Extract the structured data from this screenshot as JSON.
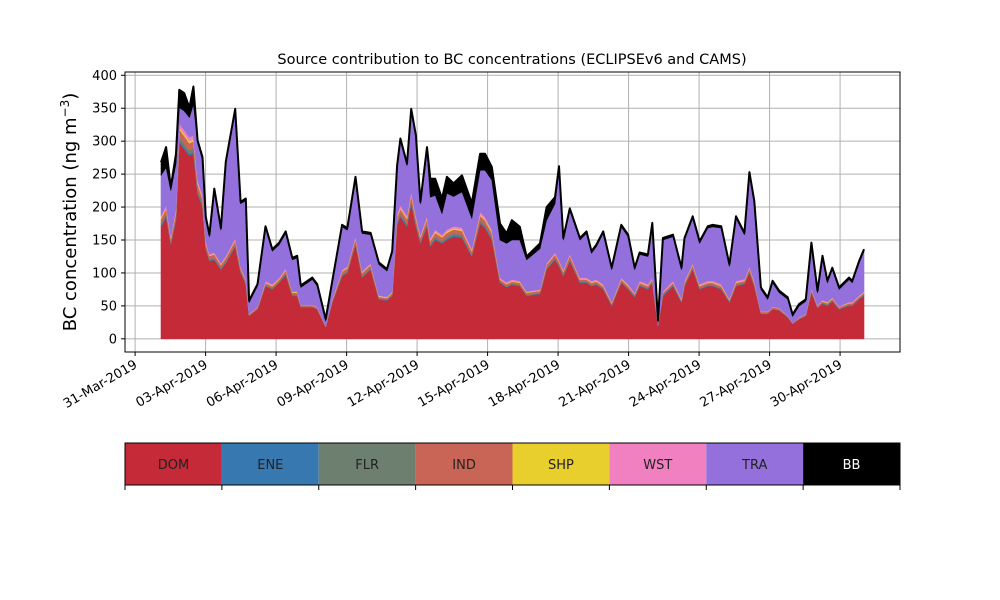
{
  "chart_data": {
    "type": "area",
    "stacked": true,
    "title": "Source contribution to BC concentrations (ECLIPSEv6 and CAMS)",
    "xlabel": "",
    "ylabel": "BC concentration (ng m",
    "ylabel_sup": "−3",
    "ylabel_end": ")",
    "x_units": "days since 2019-03-31 00:00",
    "xlim": [
      -0.43,
      32.55
    ],
    "ylim": [
      -20,
      405
    ],
    "grid": true,
    "yticks": [
      0,
      50,
      100,
      150,
      200,
      250,
      300,
      350,
      400
    ],
    "xticks": [
      {
        "day": 0,
        "label": "31-Mar-2019"
      },
      {
        "day": 3,
        "label": "03-Apr-2019"
      },
      {
        "day": 6,
        "label": "06-Apr-2019"
      },
      {
        "day": 9,
        "label": "09-Apr-2019"
      },
      {
        "day": 12,
        "label": "12-Apr-2019"
      },
      {
        "day": 15,
        "label": "15-Apr-2019"
      },
      {
        "day": 18,
        "label": "18-Apr-2019"
      },
      {
        "day": 21,
        "label": "21-Apr-2019"
      },
      {
        "day": 24,
        "label": "24-Apr-2019"
      },
      {
        "day": 27,
        "label": "27-Apr-2019"
      },
      {
        "day": 30,
        "label": "30-Apr-2019"
      }
    ],
    "legend_placement": "below",
    "x": [
      1.1,
      1.32,
      1.52,
      1.74,
      1.88,
      2.09,
      2.31,
      2.48,
      2.66,
      2.87,
      3.01,
      3.16,
      3.37,
      3.65,
      3.86,
      4.26,
      4.49,
      4.71,
      4.85,
      5.21,
      5.55,
      5.84,
      6.13,
      6.41,
      6.69,
      6.9,
      7.05,
      7.54,
      7.75,
      8.11,
      8.39,
      8.81,
      9.03,
      9.38,
      9.66,
      10.02,
      10.37,
      10.72,
      10.94,
      11.15,
      11.29,
      11.57,
      11.75,
      11.95,
      12.14,
      12.42,
      12.56,
      12.77,
      13.06,
      13.27,
      13.55,
      13.91,
      14.33,
      14.68,
      14.89,
      15.18,
      15.53,
      15.81,
      16.03,
      16.37,
      16.66,
      17.23,
      17.51,
      17.87,
      18.04,
      18.22,
      18.5,
      18.93,
      19.21,
      19.42,
      19.63,
      19.92,
      20.28,
      20.69,
      20.98,
      21.26,
      21.47,
      21.82,
      22.01,
      22.25,
      22.46,
      22.89,
      23.25,
      23.38,
      23.73,
      24.02,
      24.37,
      24.58,
      24.94,
      25.29,
      25.57,
      25.93,
      26.14,
      26.35,
      26.63,
      26.92,
      27.13,
      27.41,
      27.77,
      27.98,
      28.26,
      28.54,
      28.78,
      29.04,
      29.25,
      29.46,
      29.67,
      29.96,
      30.38,
      30.52,
      30.81,
      31.02
    ],
    "series": [
      {
        "name": "DOM",
        "color": "#c42a37",
        "text_color": "#222222",
        "values": [
          170,
          185,
          143,
          180,
          298,
          288,
          278,
          281,
          220,
          200,
          136,
          118,
          120,
          105,
          115,
          140,
          100,
          83,
          35,
          45,
          80,
          75,
          85,
          97,
          65,
          65,
          48,
          48,
          45,
          18,
          55,
          95,
          100,
          143,
          93,
          105,
          60,
          58,
          65,
          173,
          185,
          170,
          205,
          170,
          145,
          170,
          140,
          150,
          145,
          150,
          155,
          153,
          125,
          175,
          168,
          150,
          85,
          78,
          82,
          80,
          65,
          68,
          105,
          120,
          110,
          95,
          118,
          85,
          85,
          80,
          82,
          75,
          50,
          85,
          75,
          63,
          80,
          75,
          85,
          20,
          65,
          80,
          55,
          80,
          105,
          75,
          80,
          80,
          75,
          55,
          80,
          83,
          100,
          80,
          38,
          38,
          45,
          43,
          33,
          23,
          30,
          35,
          70,
          47,
          53,
          50,
          57,
          45,
          50,
          50,
          60,
          65
        ]
      },
      {
        "name": "ENE",
        "color": "#3878b0",
        "text_color": "#222222",
        "values": [
          2,
          2,
          1,
          2,
          3,
          3,
          3,
          3,
          2,
          2,
          1,
          1,
          1,
          1,
          1,
          1,
          1,
          1,
          0,
          0,
          1,
          1,
          1,
          1,
          1,
          1,
          0,
          0,
          0,
          0,
          1,
          1,
          1,
          1,
          1,
          1,
          1,
          1,
          1,
          2,
          2,
          2,
          2,
          2,
          1,
          2,
          1,
          2,
          1,
          2,
          2,
          2,
          1,
          2,
          2,
          2,
          1,
          1,
          1,
          1,
          1,
          1,
          1,
          1,
          1,
          1,
          1,
          1,
          1,
          1,
          1,
          1,
          1,
          1,
          1,
          1,
          1,
          1,
          1,
          0,
          1,
          1,
          1,
          1,
          1,
          1,
          1,
          1,
          1,
          1,
          1,
          1,
          1,
          1,
          0,
          0,
          0,
          0,
          0,
          0,
          0,
          0,
          1,
          0,
          1,
          1,
          1,
          0,
          1,
          1,
          1,
          1
        ]
      },
      {
        "name": "FLR",
        "color": "#6d8070",
        "text_color": "#222222",
        "values": [
          3,
          3,
          2,
          3,
          5,
          5,
          5,
          5,
          4,
          3,
          2,
          2,
          2,
          2,
          2,
          2,
          2,
          1,
          1,
          1,
          1,
          1,
          1,
          2,
          1,
          1,
          1,
          1,
          1,
          0,
          1,
          2,
          2,
          2,
          2,
          2,
          1,
          1,
          1,
          3,
          3,
          3,
          3,
          3,
          2,
          3,
          2,
          3,
          2,
          3,
          3,
          3,
          2,
          3,
          3,
          3,
          1,
          1,
          1,
          1,
          1,
          1,
          2,
          2,
          2,
          2,
          2,
          1,
          1,
          1,
          1,
          1,
          1,
          1,
          1,
          1,
          1,
          1,
          1,
          0,
          1,
          1,
          1,
          1,
          2,
          1,
          1,
          1,
          1,
          1,
          1,
          1,
          2,
          1,
          1,
          1,
          1,
          1,
          1,
          0,
          1,
          1,
          1,
          1,
          1,
          1,
          1,
          1,
          1,
          1,
          1,
          1
        ]
      },
      {
        "name": "IND",
        "color": "#c86556",
        "text_color": "#222222",
        "values": [
          7,
          7,
          6,
          7,
          12,
          12,
          11,
          11,
          9,
          8,
          5,
          5,
          5,
          4,
          5,
          6,
          4,
          3,
          1,
          2,
          3,
          3,
          3,
          4,
          3,
          3,
          2,
          2,
          2,
          1,
          2,
          4,
          4,
          6,
          4,
          4,
          2,
          2,
          3,
          7,
          7,
          7,
          8,
          7,
          6,
          7,
          6,
          6,
          6,
          6,
          6,
          6,
          5,
          7,
          7,
          6,
          3,
          3,
          3,
          3,
          3,
          3,
          4,
          5,
          4,
          4,
          5,
          3,
          3,
          3,
          3,
          3,
          2,
          3,
          3,
          3,
          3,
          3,
          3,
          1,
          3,
          3,
          2,
          3,
          4,
          3,
          3,
          3,
          3,
          2,
          3,
          3,
          4,
          3,
          2,
          2,
          2,
          2,
          1,
          1,
          1,
          1,
          3,
          2,
          2,
          2,
          2,
          2,
          2,
          2,
          2,
          3
        ]
      },
      {
        "name": "SHP",
        "color": "#e8cf2e",
        "text_color": "#222222",
        "values": [
          2,
          2,
          1,
          2,
          3,
          3,
          3,
          3,
          2,
          2,
          1,
          1,
          1,
          1,
          1,
          1,
          1,
          1,
          0,
          0,
          1,
          1,
          1,
          1,
          1,
          1,
          0,
          0,
          0,
          0,
          1,
          1,
          1,
          1,
          1,
          1,
          1,
          1,
          1,
          2,
          2,
          2,
          2,
          2,
          1,
          2,
          1,
          2,
          1,
          2,
          2,
          2,
          1,
          2,
          2,
          2,
          1,
          1,
          1,
          1,
          1,
          1,
          1,
          1,
          1,
          1,
          1,
          1,
          1,
          1,
          1,
          1,
          1,
          1,
          1,
          1,
          1,
          1,
          1,
          0,
          1,
          1,
          1,
          1,
          1,
          1,
          1,
          1,
          1,
          1,
          1,
          1,
          1,
          1,
          0,
          0,
          0,
          0,
          0,
          0,
          0,
          0,
          1,
          0,
          1,
          1,
          1,
          0,
          1,
          1,
          1,
          1
        ]
      },
      {
        "name": "WST",
        "color": "#f180c0",
        "text_color": "#222222",
        "values": [
          3,
          4,
          3,
          4,
          6,
          6,
          6,
          6,
          4,
          4,
          3,
          2,
          2,
          2,
          2,
          3,
          2,
          2,
          1,
          1,
          2,
          2,
          2,
          2,
          1,
          1,
          1,
          1,
          1,
          0,
          1,
          2,
          2,
          3,
          2,
          2,
          1,
          1,
          1,
          3,
          4,
          3,
          4,
          3,
          3,
          3,
          3,
          3,
          3,
          3,
          3,
          3,
          3,
          4,
          3,
          3,
          2,
          2,
          2,
          2,
          1,
          1,
          2,
          2,
          2,
          2,
          2,
          2,
          2,
          2,
          2,
          2,
          1,
          2,
          2,
          1,
          2,
          2,
          2,
          0,
          1,
          2,
          1,
          2,
          2,
          2,
          2,
          2,
          2,
          1,
          2,
          2,
          2,
          2,
          1,
          1,
          1,
          1,
          1,
          0,
          1,
          1,
          1,
          1,
          1,
          1,
          1,
          1,
          1,
          1,
          1,
          1
        ]
      },
      {
        "name": "TRA",
        "color": "#9370db",
        "text_color": "#222222",
        "values": [
          61,
          57,
          69,
          68,
          24,
          29,
          30,
          47,
          57,
          52,
          34,
          26,
          94,
          50,
          140,
          193,
          95,
          119,
          17,
          31,
          80,
          50,
          50,
          53,
          48,
          51,
          26,
          38,
          31,
          8,
          24,
          65,
          55,
          87,
          57,
          43,
          47,
          39,
          58,
          70,
          98,
          76,
          122,
          119,
          47,
          96,
          62,
          52,
          32,
          55,
          45,
          54,
          46,
          63,
          71,
          75,
          57,
          59,
          60,
          62,
          48,
          62,
          65,
          74,
          134,
          45,
          66,
          57,
          67,
          42,
          50,
          77,
          49,
          77,
          72,
          35,
          40,
          42,
          80,
          4,
          78,
          67,
          44,
          62,
          68,
          62,
          80,
          82,
          85,
          49,
          95,
          67,
          140,
          118,
          33,
          18,
          36,
          23,
          24,
          10,
          17,
          19,
          66,
          19,
          64,
          29,
          42,
          26,
          34,
          29,
          49,
          61
        ]
      },
      {
        "name": "BB",
        "color": "#000000",
        "text_color": "#ffffff",
        "values": [
          20,
          31,
          5,
          15,
          27,
          27,
          15,
          27,
          3,
          5,
          3,
          3,
          3,
          3,
          3,
          3,
          3,
          3,
          3,
          3,
          3,
          3,
          3,
          3,
          3,
          3,
          3,
          3,
          3,
          3,
          3,
          3,
          3,
          3,
          3,
          3,
          3,
          3,
          3,
          3,
          3,
          3,
          3,
          3,
          3,
          8,
          28,
          25,
          23,
          25,
          20,
          25,
          23,
          25,
          25,
          20,
          25,
          15,
          30,
          20,
          5,
          8,
          20,
          10,
          8,
          3,
          3,
          3,
          3,
          3,
          3,
          3,
          3,
          3,
          3,
          3,
          3,
          3,
          3,
          3,
          3,
          3,
          3,
          3,
          3,
          3,
          3,
          3,
          3,
          3,
          3,
          3,
          3,
          3,
          3,
          3,
          3,
          3,
          3,
          3,
          3,
          3,
          3,
          3,
          3,
          3,
          3,
          3,
          3,
          3,
          3,
          3
        ]
      }
    ]
  }
}
